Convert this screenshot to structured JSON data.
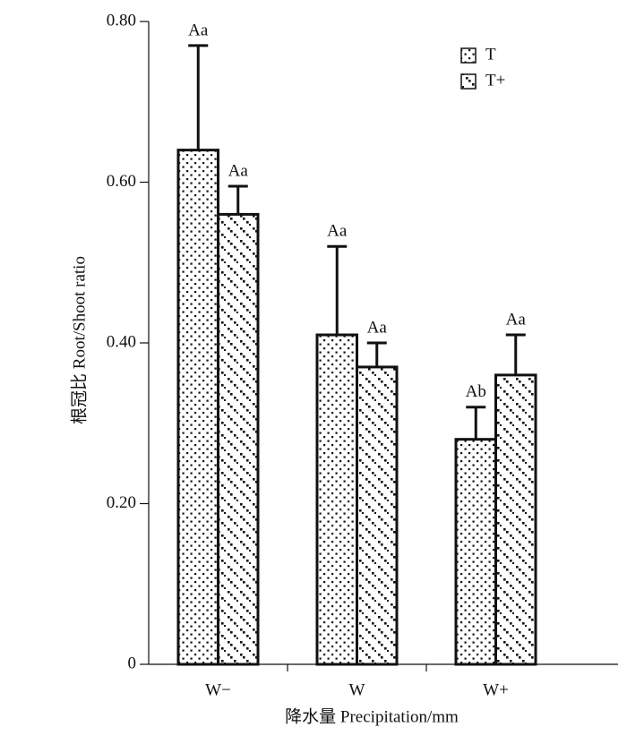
{
  "chart_data": {
    "type": "bar",
    "ylabel": "根冠比 Root/Shoot ratio",
    "xlabel": "降水量 Precipitation/mm",
    "categories": [
      "W−",
      "W",
      "W+"
    ],
    "series": [
      {
        "name": "T",
        "pattern": "dense-dots",
        "values": [
          0.64,
          0.41,
          0.28
        ],
        "errors": [
          0.13,
          0.11,
          0.04
        ],
        "letters": [
          "Aa",
          "Aa",
          "Ab"
        ]
      },
      {
        "name": "T+",
        "pattern": "sparse-dots",
        "values": [
          0.56,
          0.37,
          0.36
        ],
        "errors": [
          0.035,
          0.03,
          0.05
        ],
        "letters": [
          "Aa",
          "Aa",
          "Aa"
        ]
      }
    ],
    "ylim": [
      0,
      0.8
    ],
    "yticks": [
      0,
      {
        "value": 0.2,
        "label": "0.20"
      },
      {
        "value": 0.4,
        "label": "0.40"
      },
      {
        "value": 0.6,
        "label": "0.60"
      },
      {
        "value": 0.8,
        "label": "0.80"
      }
    ],
    "legend": "upper right"
  }
}
